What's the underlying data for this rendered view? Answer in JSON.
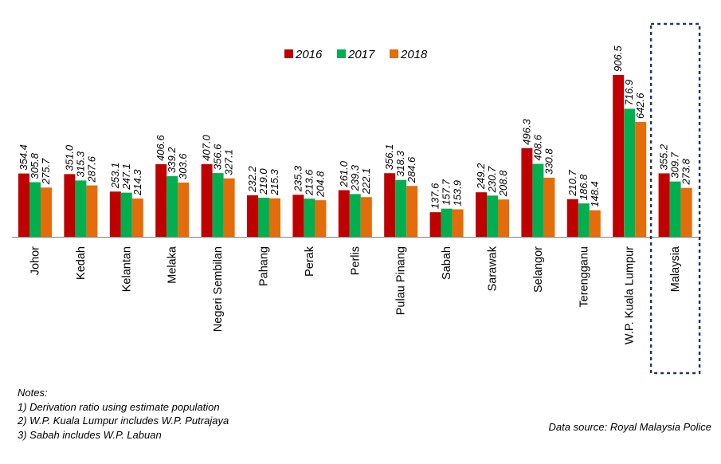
{
  "chart_data": {
    "type": "bar",
    "title": "",
    "xlabel": "",
    "ylabel": "",
    "ylim": [
      0,
      960
    ],
    "grid": false,
    "legend_position": "top",
    "categories": [
      "Johor",
      "Kedah",
      "Kelantan",
      "Melaka",
      "Negeri Sembilan",
      "Pahang",
      "Perak",
      "Perlis",
      "Pulau Pinang",
      "Sabah",
      "Sarawak",
      "Selangor",
      "Terengganu",
      "W.P. Kuala Lumpur",
      "Malaysia"
    ],
    "highlighted_category": "Malaysia",
    "series": [
      {
        "name": "2016",
        "color": "#c00000",
        "values": [
          354.4,
          351.0,
          253.1,
          406.6,
          407.0,
          232.2,
          235.3,
          261.0,
          356.1,
          137.6,
          249.2,
          496.3,
          210.7,
          906.5,
          355.2
        ],
        "labels": [
          "354.4",
          "351.0",
          "253.1",
          "406.6",
          "407.0",
          "232.2",
          "235.3",
          "261.0",
          "356.1",
          "137.6",
          "249.2",
          "496.3",
          "210.7",
          "906.5",
          "355.2"
        ]
      },
      {
        "name": "2017",
        "color": "#00b050",
        "values": [
          305.8,
          315.3,
          247.1,
          339.2,
          356.6,
          219.0,
          213.6,
          239.3,
          318.3,
          157.7,
          230.7,
          408.6,
          186.8,
          716.9,
          309.7
        ],
        "labels": [
          "305.8",
          "315.3",
          "247.1",
          "339.2",
          "356.6",
          "219.0",
          "213.6",
          "239.3",
          "318.3",
          "157.7",
          "230.7",
          "408.6",
          "186.8",
          "716.9",
          "309.7"
        ]
      },
      {
        "name": "2018",
        "color": "#e46c0a",
        "values": [
          275.7,
          287.6,
          214.3,
          303.6,
          327.1,
          215.3,
          204.8,
          222.1,
          284.6,
          153.9,
          208.8,
          330.8,
          148.4,
          642.6,
          273.8
        ],
        "labels": [
          "275.7",
          "287.6",
          "214.3",
          "303.6",
          "327.1",
          "215.3",
          "204.8",
          "222.1",
          "284.6",
          "153.9",
          "208.8",
          "330.8",
          "148.4",
          "642.6",
          "273.8"
        ]
      }
    ]
  },
  "notes": {
    "heading": "Notes:",
    "items": [
      "1) Derivation ratio using estimate population",
      "2) W.P. Kuala Lumpur includes W.P. Putrajaya",
      "3) Sabah includes W.P. Labuan"
    ]
  },
  "source": "Data source: Royal Malaysia Police"
}
